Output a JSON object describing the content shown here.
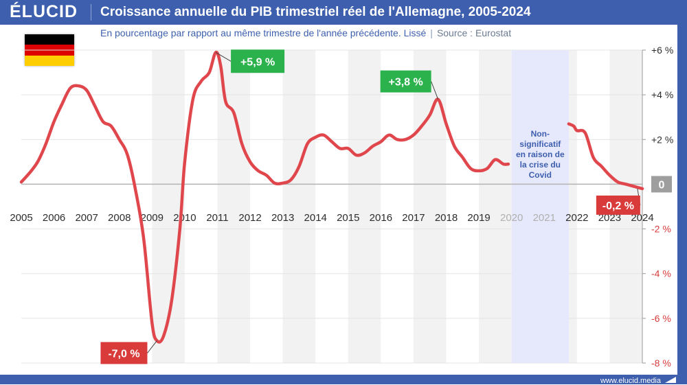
{
  "brand": {
    "logo": "ÉLUCID",
    "url": "www.elucid.media"
  },
  "header": {
    "title": "Croissance annuelle du PIB trimestriel réel de l'Allemagne, 2005-2024",
    "subtitle": "En pourcentage par rapport au même trimestre de l'année précédente. Lissé",
    "separator": "|",
    "source": "Source : Eurostat"
  },
  "flag": {
    "colors": [
      "#000000",
      "#dd0000",
      "#ffce00"
    ],
    "icon": "germany-flag-icon"
  },
  "colors": {
    "brand": "#3d5fae",
    "line": "#e0474c",
    "positive_label": "#2bb24c",
    "negative_label": "#d93b3b",
    "covid_band": "#e6e8fb",
    "stripe": "#f2f2f2",
    "zero_box": "#9e9e9e",
    "negative_tick": "#d93b3b"
  },
  "chart_data": {
    "type": "line",
    "title": "Croissance annuelle du PIB trimestriel réel de l'Allemagne, 2005-2024",
    "ylabel": "",
    "xlabel": "",
    "xlim": [
      2005,
      2024
    ],
    "ylim": [
      -8,
      6
    ],
    "x_ticks": [
      "2005",
      "2006",
      "2007",
      "2008",
      "2009",
      "2010",
      "2011",
      "2012",
      "2013",
      "2014",
      "2015",
      "2016",
      "2017",
      "2018",
      "2019",
      "2020",
      "2021",
      "2022",
      "2023",
      "2024"
    ],
    "x_ticks_greyed": [
      "2020",
      "2021"
    ],
    "y_ticks": [
      {
        "value": 6,
        "label": "+6 %"
      },
      {
        "value": 4,
        "label": "+4 %"
      },
      {
        "value": 2,
        "label": "+2 %"
      },
      {
        "value": 0,
        "label": "0"
      },
      {
        "value": -2,
        "label": "-2 %"
      },
      {
        "value": -4,
        "label": "-4 %"
      },
      {
        "value": -6,
        "label": "-6 %"
      },
      {
        "value": -8,
        "label": "-8 %"
      }
    ],
    "grid": true,
    "series": [
      {
        "segments": [
          [
            [
              2005.0,
              0.1
            ],
            [
              2005.25,
              0.5
            ],
            [
              2005.5,
              1.0
            ],
            [
              2005.75,
              1.8
            ],
            [
              2006.0,
              2.8
            ],
            [
              2006.25,
              3.6
            ],
            [
              2006.5,
              4.3
            ],
            [
              2006.75,
              4.4
            ],
            [
              2007.0,
              4.2
            ],
            [
              2007.25,
              3.5
            ],
            [
              2007.5,
              2.8
            ],
            [
              2007.75,
              2.6
            ],
            [
              2008.0,
              2.0
            ],
            [
              2008.25,
              1.3
            ],
            [
              2008.5,
              -0.3
            ],
            [
              2008.75,
              -2.5
            ],
            [
              2009.0,
              -6.2
            ],
            [
              2009.15,
              -7.0
            ],
            [
              2009.35,
              -6.8
            ],
            [
              2009.6,
              -5.2
            ],
            [
              2009.85,
              -2.0
            ],
            [
              2010.0,
              1.0
            ],
            [
              2010.25,
              3.8
            ],
            [
              2010.5,
              4.6
            ],
            [
              2010.75,
              5.0
            ],
            [
              2010.95,
              5.9
            ],
            [
              2011.1,
              5.3
            ],
            [
              2011.25,
              3.7
            ],
            [
              2011.5,
              3.2
            ],
            [
              2011.75,
              1.8
            ],
            [
              2012.0,
              1.0
            ],
            [
              2012.25,
              0.6
            ],
            [
              2012.5,
              0.4
            ],
            [
              2012.75,
              0.05
            ],
            [
              2013.0,
              0.05
            ],
            [
              2013.25,
              0.2
            ],
            [
              2013.5,
              0.8
            ],
            [
              2013.75,
              1.8
            ],
            [
              2014.0,
              2.1
            ],
            [
              2014.25,
              2.2
            ],
            [
              2014.5,
              1.9
            ],
            [
              2014.75,
              1.6
            ],
            [
              2015.0,
              1.6
            ],
            [
              2015.25,
              1.3
            ],
            [
              2015.5,
              1.4
            ],
            [
              2015.75,
              1.7
            ],
            [
              2016.0,
              1.9
            ],
            [
              2016.25,
              2.2
            ],
            [
              2016.5,
              2.0
            ],
            [
              2016.75,
              2.0
            ],
            [
              2017.0,
              2.2
            ],
            [
              2017.25,
              2.6
            ],
            [
              2017.5,
              3.1
            ],
            [
              2017.75,
              3.8
            ],
            [
              2018.0,
              2.7
            ],
            [
              2018.25,
              1.7
            ],
            [
              2018.5,
              1.2
            ],
            [
              2018.75,
              0.7
            ],
            [
              2019.0,
              0.6
            ],
            [
              2019.25,
              0.7
            ],
            [
              2019.5,
              1.1
            ],
            [
              2019.75,
              0.9
            ],
            [
              2019.9,
              0.9
            ]
          ],
          [
            [
              2021.75,
              2.7
            ],
            [
              2021.9,
              2.6
            ],
            [
              2022.0,
              2.4
            ],
            [
              2022.25,
              2.3
            ],
            [
              2022.5,
              1.2
            ],
            [
              2022.75,
              0.8
            ],
            [
              2023.0,
              0.4
            ],
            [
              2023.25,
              0.1
            ],
            [
              2023.5,
              0.0
            ],
            [
              2023.75,
              -0.1
            ],
            [
              2024.0,
              -0.2
            ]
          ]
        ]
      }
    ],
    "shaded_region": {
      "x": [
        2020.0,
        2021.75
      ],
      "label": "Non-significatif en raison de la crise du Covid"
    },
    "annotations": [
      {
        "x": 2010.95,
        "y": 5.9,
        "text": "+5,9 %",
        "kind": "positive"
      },
      {
        "x": 2017.75,
        "y": 3.8,
        "text": "+3,8 %",
        "kind": "positive"
      },
      {
        "x": 2009.15,
        "y": -7.0,
        "text": "-7,0 %",
        "kind": "negative"
      },
      {
        "x": 2023.85,
        "y": -0.2,
        "text": "-0,2 %",
        "kind": "negative"
      }
    ]
  }
}
